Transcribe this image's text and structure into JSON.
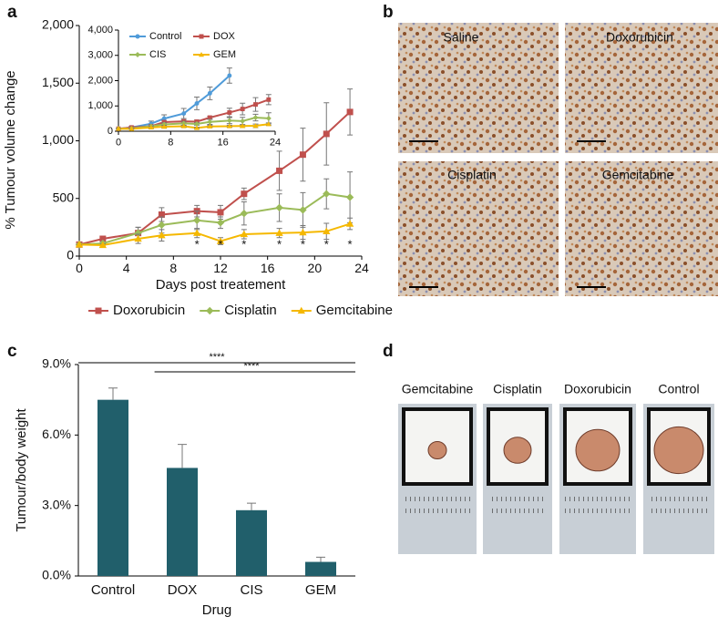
{
  "panel_labels": [
    "a",
    "b",
    "c",
    "d"
  ],
  "ihc_images": [
    "Saline",
    "Doxorubicin",
    "Cisplatin",
    "Gemcitabine"
  ],
  "tumour_photos": [
    "Gemcitabine",
    "Cisplatin",
    "Doxorubicin",
    "Control"
  ],
  "chart_data": [
    {
      "type": "line",
      "x_label": "Days post treatement",
      "y_label": "% Tumour volume change",
      "x": [
        0,
        2,
        5,
        7,
        10,
        12,
        14,
        17,
        19,
        21,
        23
      ],
      "xlim": [
        0,
        24
      ],
      "xticks": [
        0,
        4,
        8,
        12,
        16,
        20,
        24
      ],
      "ylim": [
        0,
        2000
      ],
      "yticks": [
        0,
        500,
        {
          "value": 1000,
          "label": "1,000"
        },
        {
          "value": 1500,
          "label": "1,500"
        },
        {
          "value": 2000,
          "label": "2,000"
        }
      ],
      "legend": "bottom",
      "series": [
        {
          "name": "Doxorubicin",
          "color": "#c0504d",
          "marker": "square",
          "values": [
            100,
            150,
            200,
            360,
            390,
            380,
            540,
            740,
            880,
            1060,
            1250
          ],
          "errors": [
            0,
            20,
            50,
            60,
            50,
            60,
            50,
            170,
            230,
            270,
            200
          ]
        },
        {
          "name": "Cisplatin",
          "color": "#9bbb59",
          "marker": "diamond",
          "values": [
            100,
            110,
            200,
            270,
            310,
            290,
            370,
            420,
            400,
            540,
            510
          ],
          "errors": [
            0,
            15,
            50,
            70,
            80,
            50,
            100,
            120,
            150,
            130,
            220
          ]
        },
        {
          "name": "Gemcitabine",
          "color": "#f5b800",
          "marker": "triangle",
          "values": [
            100,
            95,
            150,
            180,
            200,
            130,
            190,
            200,
            205,
            215,
            280
          ],
          "errors": [
            0,
            10,
            40,
            50,
            40,
            30,
            40,
            40,
            60,
            70,
            50
          ]
        }
      ],
      "annotations": [
        {
          "x": 10,
          "text": "*"
        },
        {
          "x": 12,
          "text": "*"
        },
        {
          "x": 14,
          "text": "*"
        },
        {
          "x": 17,
          "text": "*"
        },
        {
          "x": 19,
          "text": "*"
        },
        {
          "x": 21,
          "text": "*"
        },
        {
          "x": 23,
          "text": "*"
        }
      ]
    },
    {
      "type": "line",
      "x": [
        0,
        2,
        5,
        7,
        10,
        12,
        14,
        17,
        19,
        21,
        23
      ],
      "xlim": [
        0,
        24
      ],
      "xticks": [
        0,
        8,
        16,
        24
      ],
      "ylim": [
        0,
        4000
      ],
      "yticks": [
        0,
        {
          "value": 1000,
          "label": "1,000"
        },
        {
          "value": 2000,
          "label": "2,000"
        },
        {
          "value": 3000,
          "label": "3,000"
        },
        {
          "value": 4000,
          "label": "4,000"
        }
      ],
      "legend": "top-left",
      "series": [
        {
          "name": "Control",
          "color": "#4f9bd9",
          "marker": "circle",
          "values": [
            100,
            150,
            300,
            500,
            700,
            1100,
            1500,
            2200,
            null,
            null,
            null
          ],
          "errors": [
            0,
            50,
            100,
            150,
            200,
            250,
            250,
            300,
            null,
            null,
            null
          ]
        },
        {
          "name": "DOX",
          "color": "#c0504d",
          "marker": "square",
          "values": [
            100,
            150,
            200,
            360,
            390,
            380,
            540,
            740,
            880,
            1060,
            1250
          ],
          "errors": [
            0,
            20,
            50,
            60,
            50,
            60,
            50,
            170,
            230,
            270,
            200
          ]
        },
        {
          "name": "CIS",
          "color": "#9bbb59",
          "marker": "diamond",
          "values": [
            100,
            110,
            200,
            270,
            310,
            290,
            370,
            420,
            400,
            540,
            510
          ],
          "errors": [
            0,
            15,
            50,
            70,
            80,
            50,
            100,
            120,
            150,
            130,
            220
          ]
        },
        {
          "name": "GEM",
          "color": "#f5b800",
          "marker": "triangle",
          "values": [
            100,
            95,
            150,
            180,
            200,
            130,
            190,
            200,
            205,
            215,
            280
          ],
          "errors": [
            0,
            10,
            40,
            50,
            40,
            30,
            40,
            40,
            60,
            70,
            50
          ]
        }
      ]
    },
    {
      "type": "bar",
      "x_label": "Drug",
      "y_label": "Tumour/body weight",
      "color": "#215f6b",
      "categories": [
        "Control",
        "DOX",
        "CIS",
        "GEM"
      ],
      "values": [
        7.5,
        4.6,
        2.8,
        0.6
      ],
      "errors": [
        0.5,
        1.0,
        0.3,
        0.2
      ],
      "ylim": [
        0,
        9
      ],
      "yticks": [
        {
          "value": 0,
          "label": "0.0%"
        },
        {
          "value": 3,
          "label": "3.0%"
        },
        {
          "value": 6,
          "label": "6.0%"
        },
        {
          "value": 9,
          "label": "9.0%"
        }
      ],
      "annotations": [
        {
          "text": "****",
          "span": [
            0,
            3
          ]
        },
        {
          "text": "****",
          "span": [
            1,
            3
          ]
        }
      ]
    }
  ]
}
